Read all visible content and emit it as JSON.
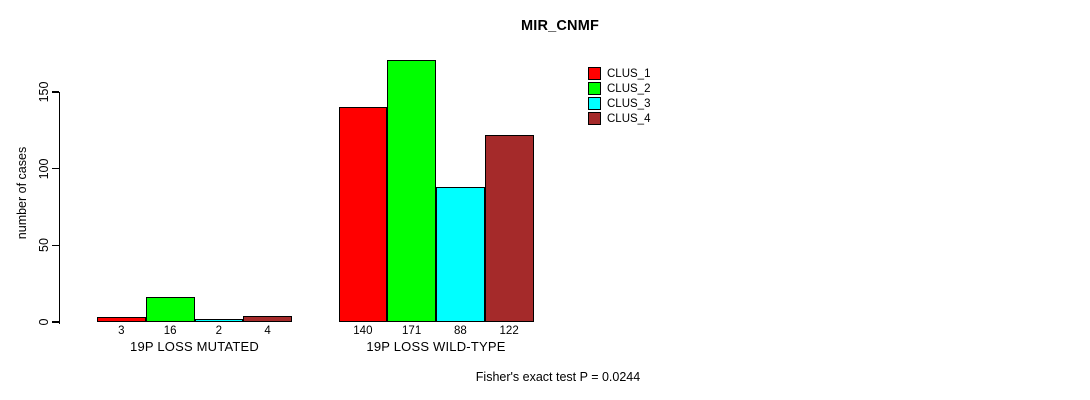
{
  "chart_data": {
    "type": "bar",
    "title": "MIR_CNMF",
    "ylabel": "number of cases",
    "xlabel": "",
    "categories": [
      "19P LOSS MUTATED",
      "19P LOSS WILD-TYPE"
    ],
    "series": [
      {
        "name": "CLUS_1",
        "color": "#ff0000",
        "values": [
          3,
          140
        ]
      },
      {
        "name": "CLUS_2",
        "color": "#00ff00",
        "values": [
          16,
          171
        ]
      },
      {
        "name": "CLUS_3",
        "color": "#00ffff",
        "values": [
          2,
          88
        ]
      },
      {
        "name": "CLUS_4",
        "color": "#a52a2a",
        "values": [
          4,
          122
        ]
      }
    ],
    "value_labels": [
      [
        "3",
        "16",
        "2",
        "4"
      ],
      [
        "140",
        "171",
        "88",
        "122"
      ]
    ],
    "yticks": [
      "0",
      "50",
      "100",
      "150"
    ],
    "ylim": [
      0,
      150
    ],
    "grid": false,
    "legend_position": "top-right",
    "legend_entries": [
      "CLUS_1",
      "CLUS_2",
      "CLUS_3",
      "CLUS_4"
    ],
    "annotation": "Fisher's exact test P = 0.0244"
  },
  "colors": {
    "axis": "#000000",
    "background": "#ffffff",
    "text": "#000000"
  }
}
